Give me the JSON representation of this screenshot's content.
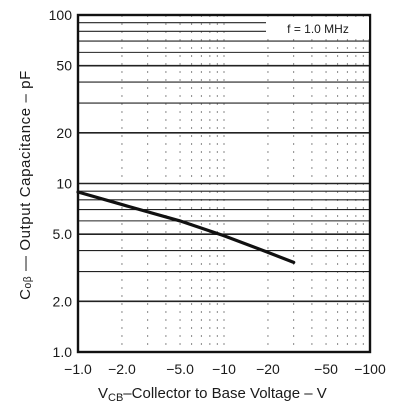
{
  "chart_data": {
    "type": "line",
    "annotation": "f = 1.0 MHz",
    "ylabel": "Cₒᵦ — Output Capacitance – pF",
    "xlabel_prefix": "V",
    "xlabel_sub": "CB",
    "xlabel_rest": "–Collector to Base Voltage – V",
    "x_scale": "log",
    "y_scale": "log",
    "xlim": [
      -1.0,
      -100
    ],
    "ylim": [
      1.0,
      100
    ],
    "x_tick_labels": [
      "−1.0",
      "−2.0",
      "−5.0",
      "−10",
      "−20",
      "−50",
      "−100"
    ],
    "x_tick_values": [
      -1,
      -2,
      -5,
      -10,
      -20,
      -50,
      -100
    ],
    "y_tick_labels": [
      "1.0",
      "2.0",
      "5.0",
      "10",
      "20",
      "50",
      "100"
    ],
    "y_tick_values": [
      1,
      2,
      5,
      10,
      20,
      50,
      100
    ],
    "grid": true,
    "series": [
      {
        "x": [
          -1.0,
          -2.0,
          -5.0,
          -10.0,
          -20.0,
          -30.0
        ],
        "y": [
          8.9,
          7.5,
          6.0,
          4.9,
          3.9,
          3.4
        ]
      }
    ]
  }
}
